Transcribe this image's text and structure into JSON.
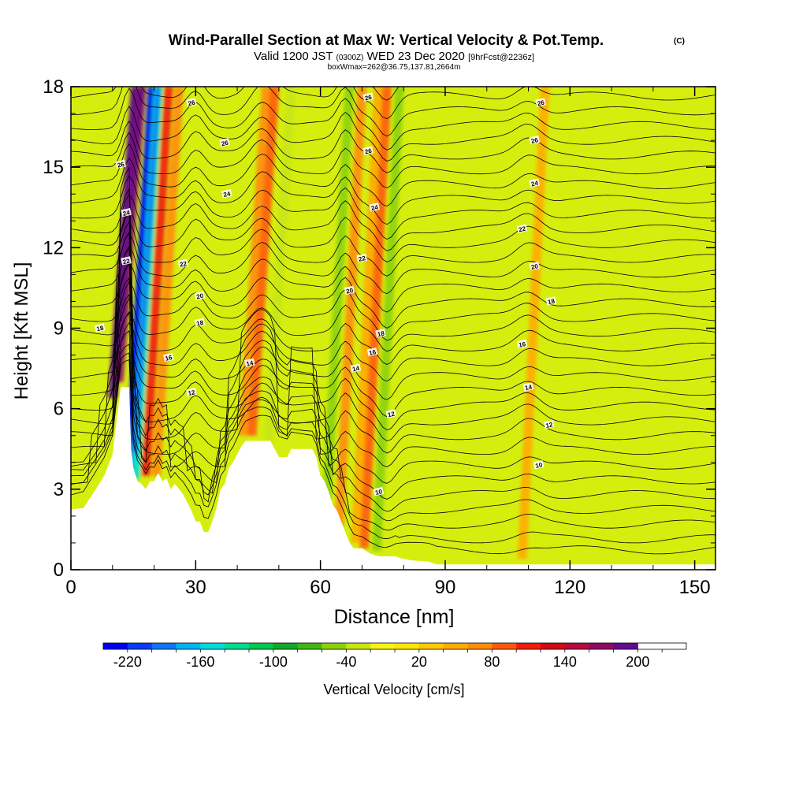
{
  "chart_data": {
    "type": "heatmap",
    "title": "Wind-Parallel Section at Max W: Vertical Velocity & Pot.Temp.",
    "title_mark": "(C)",
    "subtitle_main": "Valid 1200 JST",
    "subtitle_utc": "(0300Z)",
    "subtitle_date": "WED 23 Dec 2020",
    "subtitle_fcst": "[9hrFcst@2236z]",
    "subtitle2": "boxWmax=262@36.75,137.81,2664m",
    "xlabel": "Distance [nm]",
    "ylabel": "Height [Kft MSL]",
    "xlim": [
      0,
      155
    ],
    "ylim": [
      0,
      18
    ],
    "x_ticks": [
      "0",
      "30",
      "60",
      "90",
      "120",
      "150"
    ],
    "x_tick_values": [
      0,
      30,
      60,
      90,
      120,
      150
    ],
    "y_ticks": [
      "0",
      "3",
      "6",
      "9",
      "12",
      "15",
      "18"
    ],
    "y_tick_values": [
      0,
      3,
      6,
      9,
      12,
      15,
      18
    ],
    "colorbar": {
      "label": "Vertical Velocity [cm/s]",
      "min": -240,
      "max": 240,
      "step": 20,
      "tick_labels": [
        "-220",
        "-160",
        "-100",
        "-40",
        "20",
        "80",
        "140",
        "200"
      ],
      "tick_values": [
        -220,
        -160,
        -100,
        -40,
        20,
        80,
        140,
        200
      ],
      "colors": [
        "#0000f0",
        "#0a3cf5",
        "#0a78f5",
        "#00b4f0",
        "#00dcdc",
        "#00dc8c",
        "#00c850",
        "#10aa28",
        "#40b814",
        "#8cd20a",
        "#c8e614",
        "#f5f514",
        "#ffe600",
        "#ffc800",
        "#ffaa00",
        "#ff8c0a",
        "#ff5a0a",
        "#f01e0a",
        "#d20a14",
        "#b40a3c",
        "#8c0a64",
        "#640a8c"
      ]
    },
    "terrain_kft": [
      [
        0,
        2.25
      ],
      [
        3,
        2.3
      ],
      [
        6,
        3.0
      ],
      [
        8,
        3.5
      ],
      [
        10,
        4.3
      ],
      [
        11,
        5.6
      ],
      [
        12,
        6.8
      ],
      [
        14,
        6.8
      ],
      [
        14.5,
        4.5
      ],
      [
        15,
        3.8
      ],
      [
        16,
        3.3
      ],
      [
        17,
        3.2
      ],
      [
        18,
        3.0
      ],
      [
        19,
        3.3
      ],
      [
        20,
        3.3
      ],
      [
        21,
        3.6
      ],
      [
        22,
        3.3
      ],
      [
        23,
        3.4
      ],
      [
        24,
        3.0
      ],
      [
        25,
        3.2
      ],
      [
        26,
        3.0
      ],
      [
        27,
        2.8
      ],
      [
        28,
        2.5
      ],
      [
        29,
        2.2
      ],
      [
        30,
        1.8
      ],
      [
        31,
        1.8
      ],
      [
        32,
        1.4
      ],
      [
        33,
        1.4
      ],
      [
        34,
        1.8
      ],
      [
        35,
        2.3
      ],
      [
        36,
        3.0
      ],
      [
        37,
        3.2
      ],
      [
        38,
        3.8
      ],
      [
        39,
        4.0
      ],
      [
        40,
        4.3
      ],
      [
        41,
        4.6
      ],
      [
        42,
        4.8
      ],
      [
        48,
        4.8
      ],
      [
        49,
        4.5
      ],
      [
        50,
        4.2
      ],
      [
        52,
        4.2
      ],
      [
        53,
        4.5
      ],
      [
        58,
        4.5
      ],
      [
        59,
        4.2
      ],
      [
        60,
        3.5
      ],
      [
        61,
        3.3
      ],
      [
        62,
        2.9
      ],
      [
        63,
        2.4
      ],
      [
        64,
        2.2
      ],
      [
        65,
        1.8
      ],
      [
        66,
        1.4
      ],
      [
        67,
        1.0
      ],
      [
        68,
        0.8
      ],
      [
        70,
        0.8
      ],
      [
        72,
        0.6
      ],
      [
        74,
        0.5
      ],
      [
        78,
        0.5
      ],
      [
        80,
        0.4
      ],
      [
        82,
        0.35
      ],
      [
        86,
        0.3
      ],
      [
        88,
        0.2
      ],
      [
        155,
        0.2
      ]
    ],
    "vertical_velocity_features_cm_s": [
      {
        "x": 11.5,
        "z_top": 18,
        "value": 200
      },
      {
        "x": 13,
        "z_top": 18,
        "value": 160
      },
      {
        "x": 15.5,
        "z_top": 18,
        "value": -220
      },
      {
        "x": 17,
        "z_top": 18,
        "value": -160
      },
      {
        "x": 19.5,
        "z_top": 18,
        "value": 100
      },
      {
        "x": 22,
        "z_top": 18,
        "value": 60
      },
      {
        "x": 43,
        "z_top": 18,
        "value": 60
      },
      {
        "x": 45,
        "z_top": 18,
        "value": 80
      },
      {
        "x": 49,
        "z_top": 18,
        "value": -40
      },
      {
        "x": 63,
        "z_top": 18,
        "value": -60
      },
      {
        "x": 66,
        "z_top": 18,
        "value": 60
      },
      {
        "x": 70,
        "z_top": 18,
        "value": 40
      },
      {
        "x": 72,
        "z_top": 18,
        "value": 80
      },
      {
        "x": 75,
        "z_top": 18,
        "value": -60
      },
      {
        "x": 110,
        "z_top": 18,
        "value": 40
      }
    ],
    "potential_temperature_labels": [
      {
        "label": "26",
        "x": 29,
        "z": 17.4
      },
      {
        "label": "26",
        "x": 37,
        "z": 15.9
      },
      {
        "label": "26",
        "x": 12,
        "z": 15.1
      },
      {
        "label": "24",
        "x": 13.3,
        "z": 13.3
      },
      {
        "label": "24",
        "x": 37.5,
        "z": 14.0
      },
      {
        "label": "22",
        "x": 13.3,
        "z": 11.5
      },
      {
        "label": "22",
        "x": 27,
        "z": 11.4
      },
      {
        "label": "20",
        "x": 31,
        "z": 10.2
      },
      {
        "label": "18",
        "x": 7,
        "z": 9.0
      },
      {
        "label": "18",
        "x": 31,
        "z": 9.2
      },
      {
        "label": "16",
        "x": 23.5,
        "z": 7.9
      },
      {
        "label": "14",
        "x": 43,
        "z": 7.7
      },
      {
        "label": "12",
        "x": 29,
        "z": 6.6
      },
      {
        "label": "26",
        "x": 71.5,
        "z": 17.6
      },
      {
        "label": "26",
        "x": 71.5,
        "z": 15.6
      },
      {
        "label": "24",
        "x": 73,
        "z": 13.5
      },
      {
        "label": "22",
        "x": 70,
        "z": 11.6
      },
      {
        "label": "20",
        "x": 67,
        "z": 10.4
      },
      {
        "label": "18",
        "x": 74.5,
        "z": 8.8
      },
      {
        "label": "16",
        "x": 72.5,
        "z": 8.1
      },
      {
        "label": "14",
        "x": 68.5,
        "z": 7.5
      },
      {
        "label": "12",
        "x": 77,
        "z": 5.8
      },
      {
        "label": "10",
        "x": 74,
        "z": 2.9
      },
      {
        "label": "26",
        "x": 113,
        "z": 17.4
      },
      {
        "label": "26",
        "x": 111.5,
        "z": 16.0
      },
      {
        "label": "24",
        "x": 111.5,
        "z": 14.4
      },
      {
        "label": "22",
        "x": 108.5,
        "z": 12.7
      },
      {
        "label": "20",
        "x": 111.5,
        "z": 11.3
      },
      {
        "label": "18",
        "x": 115.5,
        "z": 10.0
      },
      {
        "label": "16",
        "x": 108.5,
        "z": 8.4
      },
      {
        "label": "14",
        "x": 110,
        "z": 6.8
      },
      {
        "label": "12",
        "x": 115,
        "z": 5.4
      },
      {
        "label": "10",
        "x": 112.5,
        "z": 3.9
      }
    ],
    "grid": false
  }
}
